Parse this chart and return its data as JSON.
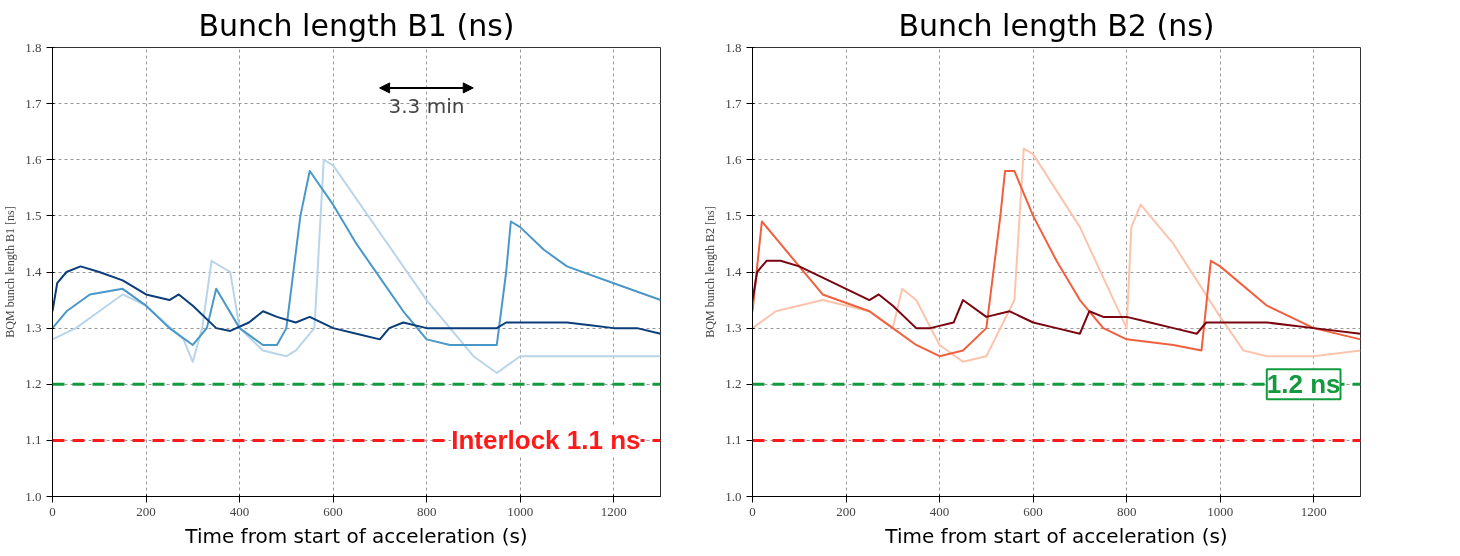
{
  "chart_data": [
    {
      "type": "line",
      "title": "Bunch length B1 (ns)",
      "xlabel": "Time from start of acceleration (s)",
      "ylabel": "BQM bunch length B1 [ns]",
      "xlim": [
        0,
        1300
      ],
      "ylim": [
        1.0,
        1.8
      ],
      "xticks": [
        0,
        200,
        400,
        600,
        800,
        1000,
        1200
      ],
      "yticks": [
        {
          "value": 1.0,
          "label": "1.0"
        },
        1.1,
        1.2,
        1.3,
        1.4,
        1.5,
        1.6,
        1.7,
        1.8
      ],
      "grid": true,
      "series": [
        {
          "color": "#b8d5ea",
          "x": [
            0,
            50,
            100,
            150,
            200,
            280,
            300,
            320,
            340,
            380,
            400,
            450,
            500,
            520,
            560,
            580,
            600,
            700,
            800,
            900,
            950,
            1000,
            1100,
            1200,
            1300
          ],
          "values": [
            1.28,
            1.3,
            1.33,
            1.36,
            1.34,
            1.28,
            1.24,
            1.3,
            1.42,
            1.4,
            1.3,
            1.26,
            1.25,
            1.26,
            1.3,
            1.6,
            1.59,
            1.47,
            1.35,
            1.25,
            1.22,
            1.25,
            1.25,
            1.25,
            1.25
          ]
        },
        {
          "color": "#4a98c9",
          "x": [
            0,
            30,
            80,
            150,
            200,
            250,
            300,
            330,
            350,
            400,
            450,
            480,
            500,
            530,
            550,
            600,
            650,
            700,
            750,
            800,
            850,
            950,
            970,
            980,
            1000,
            1050,
            1100,
            1200,
            1300
          ],
          "values": [
            1.3,
            1.33,
            1.36,
            1.37,
            1.34,
            1.3,
            1.27,
            1.3,
            1.37,
            1.3,
            1.27,
            1.27,
            1.3,
            1.5,
            1.58,
            1.52,
            1.45,
            1.39,
            1.33,
            1.28,
            1.27,
            1.27,
            1.4,
            1.49,
            1.48,
            1.44,
            1.41,
            1.38,
            1.35
          ]
        },
        {
          "color": "#0b3d7a",
          "x": [
            0,
            10,
            30,
            60,
            100,
            150,
            200,
            250,
            270,
            300,
            350,
            380,
            420,
            450,
            480,
            520,
            550,
            600,
            650,
            700,
            720,
            750,
            800,
            850,
            900,
            950,
            970,
            1000,
            1050,
            1100,
            1150,
            1200,
            1250,
            1300
          ],
          "values": [
            1.33,
            1.38,
            1.4,
            1.41,
            1.4,
            1.385,
            1.36,
            1.35,
            1.36,
            1.34,
            1.3,
            1.295,
            1.31,
            1.33,
            1.32,
            1.31,
            1.32,
            1.3,
            1.29,
            1.28,
            1.3,
            1.31,
            1.3,
            1.3,
            1.3,
            1.3,
            1.31,
            1.31,
            1.31,
            1.31,
            1.305,
            1.3,
            1.3,
            1.29
          ]
        }
      ],
      "ref_lines": [
        {
          "axis": "y",
          "value": 1.2,
          "label": null,
          "color": "#139a3e",
          "line_style": "dashed"
        },
        {
          "axis": "y",
          "value": 1.1,
          "label": "Interlock 1.1 ns",
          "color": "#ff1a1a",
          "line_style": "dashed"
        }
      ],
      "annotations": [
        "3.3 min"
      ]
    },
    {
      "type": "line",
      "title": "Bunch length B2 (ns)",
      "xlabel": "Time from start of acceleration (s)",
      "ylabel": "BQM bunch length B2 [ns]",
      "xlim": [
        0,
        1300
      ],
      "ylim": [
        1.0,
        1.8
      ],
      "xticks": [
        0,
        200,
        400,
        600,
        800,
        1000,
        1200
      ],
      "yticks": [
        {
          "value": 1.0,
          "label": "1.0"
        },
        1.1,
        1.2,
        1.3,
        1.4,
        1.5,
        1.6,
        1.7,
        1.8
      ],
      "grid": true,
      "series": [
        {
          "color": "#fcc4ad",
          "x": [
            0,
            50,
            150,
            250,
            300,
            320,
            350,
            400,
            450,
            500,
            560,
            580,
            600,
            700,
            800,
            810,
            830,
            900,
            1000,
            1050,
            1100,
            1200,
            1300
          ],
          "values": [
            1.3,
            1.33,
            1.35,
            1.33,
            1.3,
            1.37,
            1.35,
            1.27,
            1.24,
            1.25,
            1.35,
            1.62,
            1.61,
            1.48,
            1.3,
            1.48,
            1.52,
            1.45,
            1.32,
            1.26,
            1.25,
            1.25,
            1.26
          ]
        },
        {
          "color": "#f0603f",
          "x": [
            0,
            20,
            60,
            150,
            250,
            300,
            350,
            400,
            450,
            500,
            530,
            540,
            560,
            600,
            650,
            700,
            750,
            800,
            900,
            960,
            980,
            1000,
            1100,
            1200,
            1300
          ],
          "values": [
            1.33,
            1.49,
            1.45,
            1.36,
            1.33,
            1.3,
            1.27,
            1.25,
            1.26,
            1.3,
            1.5,
            1.58,
            1.58,
            1.5,
            1.42,
            1.35,
            1.3,
            1.28,
            1.27,
            1.26,
            1.42,
            1.41,
            1.34,
            1.3,
            1.28
          ]
        },
        {
          "color": "#7a0510",
          "x": [
            0,
            10,
            30,
            60,
            100,
            150,
            200,
            250,
            270,
            300,
            350,
            380,
            430,
            450,
            500,
            550,
            600,
            650,
            700,
            720,
            750,
            800,
            850,
            900,
            950,
            970,
            1000,
            1100,
            1200,
            1300
          ],
          "values": [
            1.35,
            1.4,
            1.42,
            1.42,
            1.41,
            1.39,
            1.37,
            1.35,
            1.36,
            1.34,
            1.3,
            1.3,
            1.31,
            1.35,
            1.32,
            1.33,
            1.31,
            1.3,
            1.29,
            1.33,
            1.32,
            1.32,
            1.31,
            1.3,
            1.29,
            1.31,
            1.31,
            1.31,
            1.3,
            1.29
          ]
        }
      ],
      "ref_lines": [
        {
          "axis": "y",
          "value": 1.2,
          "label": "1.2 ns",
          "color": "#139a3e",
          "line_style": "dashed"
        },
        {
          "axis": "y",
          "value": 1.1,
          "label": null,
          "color": "#ff1a1a",
          "line_style": "dashed"
        }
      ]
    }
  ]
}
